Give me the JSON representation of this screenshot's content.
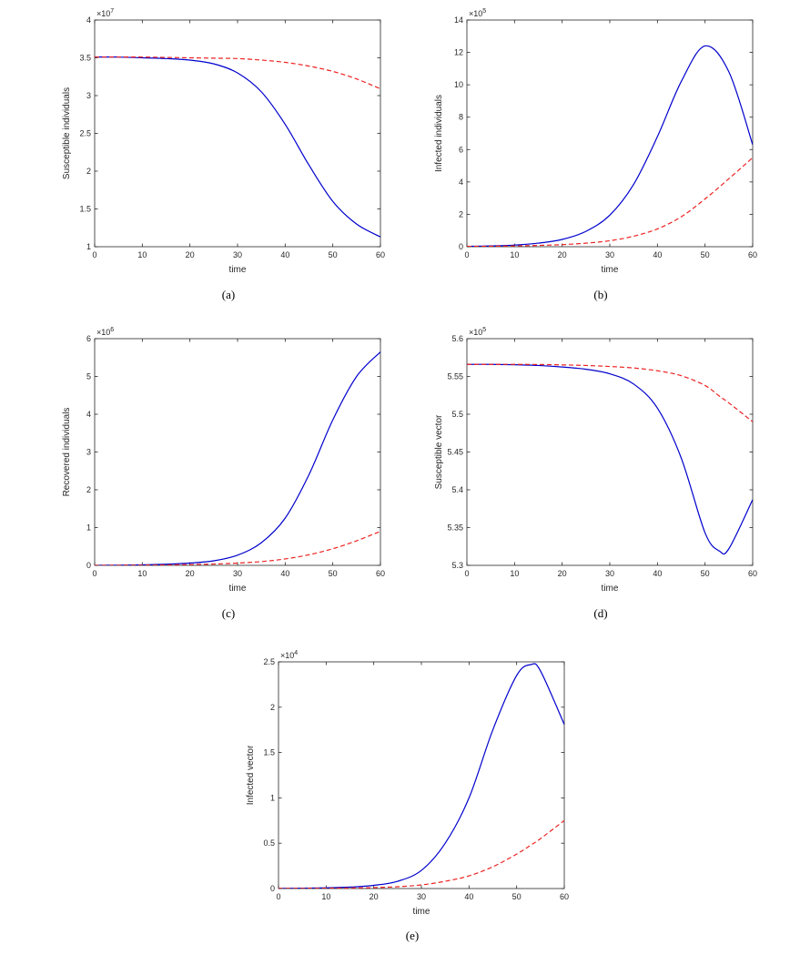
{
  "chart_data": [
    {
      "type": "line",
      "panel_label": "(a)",
      "xlabel": "time",
      "ylabel": "Susceptible individuals",
      "y_multiplier": "×10",
      "y_exponent": "7",
      "xlim": [
        0,
        60
      ],
      "ylim": [
        1,
        4
      ],
      "x_ticks": [
        "0",
        "10",
        "20",
        "30",
        "40",
        "50",
        "60"
      ],
      "y_ticks": [
        "1",
        "1.5",
        "2",
        "2.5",
        "3",
        "3.5",
        "4"
      ],
      "x": [
        0,
        5,
        10,
        15,
        20,
        25,
        30,
        35,
        40,
        45,
        50,
        55,
        60
      ],
      "series": [
        {
          "style": "solid",
          "color": "#0000cc",
          "values": [
            3.51,
            3.51,
            3.5,
            3.49,
            3.47,
            3.42,
            3.3,
            3.05,
            2.62,
            2.08,
            1.6,
            1.3,
            1.13
          ]
        },
        {
          "style": "dashed",
          "color": "#ee2222",
          "values": [
            3.51,
            3.51,
            3.51,
            3.505,
            3.5,
            3.495,
            3.49,
            3.47,
            3.44,
            3.39,
            3.32,
            3.22,
            3.09
          ]
        }
      ]
    },
    {
      "type": "line",
      "panel_label": "(b)",
      "xlabel": "time",
      "ylabel": "Infected individuals",
      "y_multiplier": "×10",
      "y_exponent": "5",
      "xlim": [
        0,
        60
      ],
      "ylim": [
        0,
        14
      ],
      "x_ticks": [
        "0",
        "10",
        "20",
        "30",
        "40",
        "50",
        "60"
      ],
      "y_ticks": [
        "0",
        "2",
        "4",
        "6",
        "8",
        "10",
        "12",
        "14"
      ],
      "x": [
        0,
        5,
        10,
        15,
        20,
        25,
        30,
        35,
        40,
        45,
        50,
        55,
        60
      ],
      "series": [
        {
          "style": "solid",
          "color": "#0000cc",
          "values": [
            0.02,
            0.05,
            0.1,
            0.22,
            0.45,
            0.95,
            1.95,
            3.85,
            6.8,
            10.2,
            12.4,
            10.8,
            6.3
          ]
        },
        {
          "style": "dashed",
          "color": "#ee2222",
          "values": [
            0.02,
            0.03,
            0.05,
            0.08,
            0.13,
            0.22,
            0.37,
            0.65,
            1.1,
            1.85,
            2.95,
            4.2,
            5.5
          ]
        }
      ]
    },
    {
      "type": "line",
      "panel_label": "(c)",
      "xlabel": "time",
      "ylabel": "Recovered individuals",
      "y_multiplier": "×10",
      "y_exponent": "6",
      "xlim": [
        0,
        60
      ],
      "ylim": [
        0,
        6
      ],
      "x_ticks": [
        "0",
        "10",
        "20",
        "30",
        "40",
        "50",
        "60"
      ],
      "y_ticks": [
        "0",
        "1",
        "2",
        "3",
        "4",
        "5",
        "6"
      ],
      "x": [
        0,
        5,
        10,
        15,
        20,
        25,
        30,
        35,
        40,
        45,
        50,
        55,
        60
      ],
      "series": [
        {
          "style": "solid",
          "color": "#0000cc",
          "values": [
            0,
            0.005,
            0.012,
            0.03,
            0.06,
            0.12,
            0.27,
            0.6,
            1.25,
            2.4,
            3.85,
            5.0,
            5.65
          ]
        },
        {
          "style": "dashed",
          "color": "#ee2222",
          "values": [
            0,
            0.002,
            0.005,
            0.01,
            0.02,
            0.035,
            0.06,
            0.1,
            0.17,
            0.28,
            0.44,
            0.65,
            0.9
          ]
        }
      ]
    },
    {
      "type": "line",
      "panel_label": "(d)",
      "xlabel": "time",
      "ylabel": "Susceptible vector",
      "y_multiplier": "×10",
      "y_exponent": "5",
      "xlim": [
        0,
        60
      ],
      "ylim": [
        5.3,
        5.6
      ],
      "x_ticks": [
        "0",
        "10",
        "20",
        "30",
        "40",
        "50",
        "60"
      ],
      "y_ticks": [
        "5.3",
        "5.35",
        "5.4",
        "5.45",
        "5.5",
        "5.55",
        "5.6"
      ],
      "x": [
        0,
        5,
        10,
        15,
        20,
        25,
        30,
        35,
        40,
        45,
        50,
        53,
        55,
        60
      ],
      "series": [
        {
          "style": "solid",
          "color": "#0000cc",
          "values": [
            5.566,
            5.566,
            5.5655,
            5.5645,
            5.5625,
            5.5595,
            5.5535,
            5.54,
            5.508,
            5.442,
            5.343,
            5.319,
            5.322,
            5.387
          ]
        },
        {
          "style": "dashed",
          "color": "#ee2222",
          "values": [
            5.566,
            5.566,
            5.566,
            5.5658,
            5.5653,
            5.5645,
            5.5632,
            5.5612,
            5.5575,
            5.551,
            5.538,
            5.524,
            5.515,
            5.49
          ]
        }
      ]
    },
    {
      "type": "line",
      "panel_label": "(e)",
      "xlabel": "time",
      "ylabel": "Infected vector",
      "y_multiplier": "×10",
      "y_exponent": "4",
      "xlim": [
        0,
        60
      ],
      "ylim": [
        0,
        2.5
      ],
      "x_ticks": [
        "0",
        "10",
        "20",
        "30",
        "40",
        "50",
        "60"
      ],
      "y_ticks": [
        "0",
        "0.5",
        "1",
        "1.5",
        "2",
        "2.5"
      ],
      "x": [
        0,
        5,
        10,
        15,
        20,
        25,
        30,
        35,
        40,
        45,
        50,
        53,
        55,
        60
      ],
      "series": [
        {
          "style": "solid",
          "color": "#0000cc",
          "values": [
            0.002,
            0.004,
            0.008,
            0.016,
            0.035,
            0.08,
            0.2,
            0.5,
            1.0,
            1.75,
            2.35,
            2.47,
            2.4,
            1.81
          ]
        },
        {
          "style": "dashed",
          "color": "#ee2222",
          "values": [
            0.001,
            0.002,
            0.003,
            0.005,
            0.01,
            0.02,
            0.04,
            0.08,
            0.14,
            0.24,
            0.38,
            0.48,
            0.55,
            0.75
          ]
        }
      ]
    }
  ]
}
